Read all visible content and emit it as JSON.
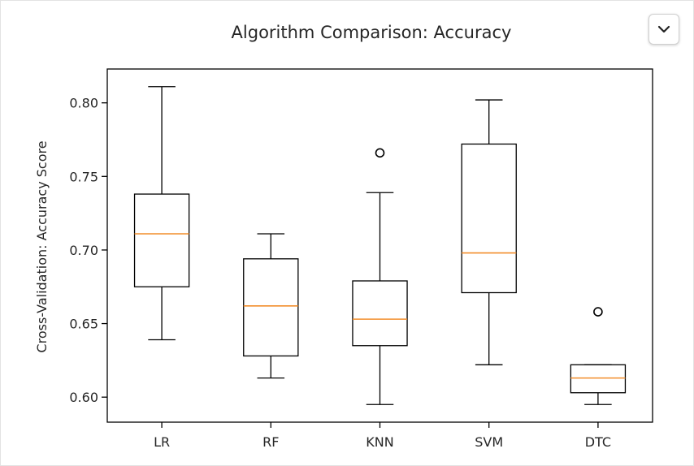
{
  "controls": {
    "menu_icon": "chevron-down-icon"
  },
  "colors": {
    "box": "#000000",
    "median": "#f28e2b",
    "outlier": "#000000"
  },
  "chart_data": {
    "type": "boxplot",
    "title": "Algorithm Comparison: Accuracy",
    "xlabel": "",
    "ylabel": "Cross-Validation: Accuracy Score",
    "ylim": [
      0.583,
      0.823
    ],
    "yticks": [
      "0.60",
      "0.65",
      "0.70",
      "0.75",
      "0.80"
    ],
    "ytick_values": [
      0.6,
      0.65,
      0.7,
      0.75,
      0.8
    ],
    "grid": false,
    "categories": [
      "LR",
      "RF",
      "KNN",
      "SVM",
      "DTC"
    ],
    "boxes": [
      {
        "name": "LR",
        "whisker_low": 0.639,
        "q1": 0.675,
        "median": 0.711,
        "q3": 0.738,
        "whisker_high": 0.811,
        "outliers": []
      },
      {
        "name": "RF",
        "whisker_low": 0.613,
        "q1": 0.628,
        "median": 0.662,
        "q3": 0.694,
        "whisker_high": 0.711,
        "outliers": []
      },
      {
        "name": "KNN",
        "whisker_low": 0.595,
        "q1": 0.635,
        "median": 0.653,
        "q3": 0.679,
        "whisker_high": 0.739,
        "outliers": [
          0.766
        ]
      },
      {
        "name": "SVM",
        "whisker_low": 0.622,
        "q1": 0.671,
        "median": 0.698,
        "q3": 0.772,
        "whisker_high": 0.802,
        "outliers": []
      },
      {
        "name": "DTC",
        "whisker_low": 0.595,
        "q1": 0.603,
        "median": 0.613,
        "q3": 0.622,
        "whisker_high": 0.622,
        "outliers": [
          0.658
        ]
      }
    ]
  }
}
